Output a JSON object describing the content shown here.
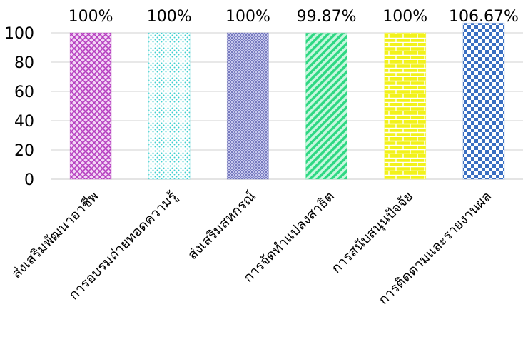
{
  "chart_data": {
    "type": "bar",
    "categories": [
      "ส่งเสริมพัฒนาอาชีพ",
      "การอบรมถ่ายทอดความรู้",
      "ส่งเสริมสหกรณ์",
      "การจัดทำแปลงสาธิต",
      "การสนับสนุนปัจจัย",
      "การติดตามและรายงานผล"
    ],
    "values": [
      100,
      100,
      100,
      99.87,
      100,
      106.67
    ],
    "data_labels": [
      "100%",
      "100%",
      "100%",
      "99.87%",
      "100%",
      "106.67%"
    ],
    "yticks": [
      "0",
      "20",
      "40",
      "60",
      "80",
      "100"
    ],
    "ylim": [
      0,
      100
    ],
    "grid": true,
    "legend": "none",
    "bar_colors": [
      "#b63fc0",
      "#3fd0d0",
      "#3a3f9c",
      "#2fd883",
      "#f2f21a",
      "#3a6fc2"
    ],
    "bar_patterns": [
      "zigzag-weave",
      "dots",
      "fine-dots",
      "diagonal-stripes",
      "bricks",
      "checkerboard"
    ]
  }
}
